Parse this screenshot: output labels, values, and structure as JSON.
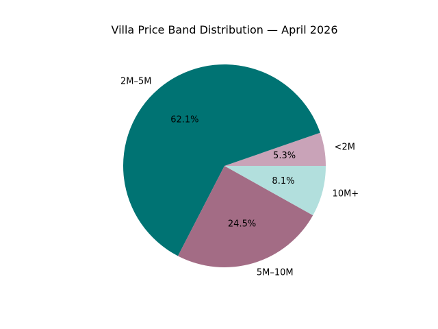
{
  "chart_data": {
    "type": "pie",
    "title": "Villa Price Band Distribution — April 2026",
    "slices": [
      {
        "label": "<2M",
        "value": 5.3,
        "pct_label": "5.3%",
        "color": "#c9a3b8"
      },
      {
        "label": "2M–5M",
        "value": 62.1,
        "pct_label": "62.1%",
        "color": "#007373"
      },
      {
        "label": "5M–10M",
        "value": 24.5,
        "pct_label": "24.5%",
        "color": "#a36c85"
      },
      {
        "label": "10M+",
        "value": 8.1,
        "pct_label": "8.1%",
        "color": "#b2dfdd"
      }
    ],
    "start_angle_deg": 0,
    "direction": "counterclockwise"
  }
}
